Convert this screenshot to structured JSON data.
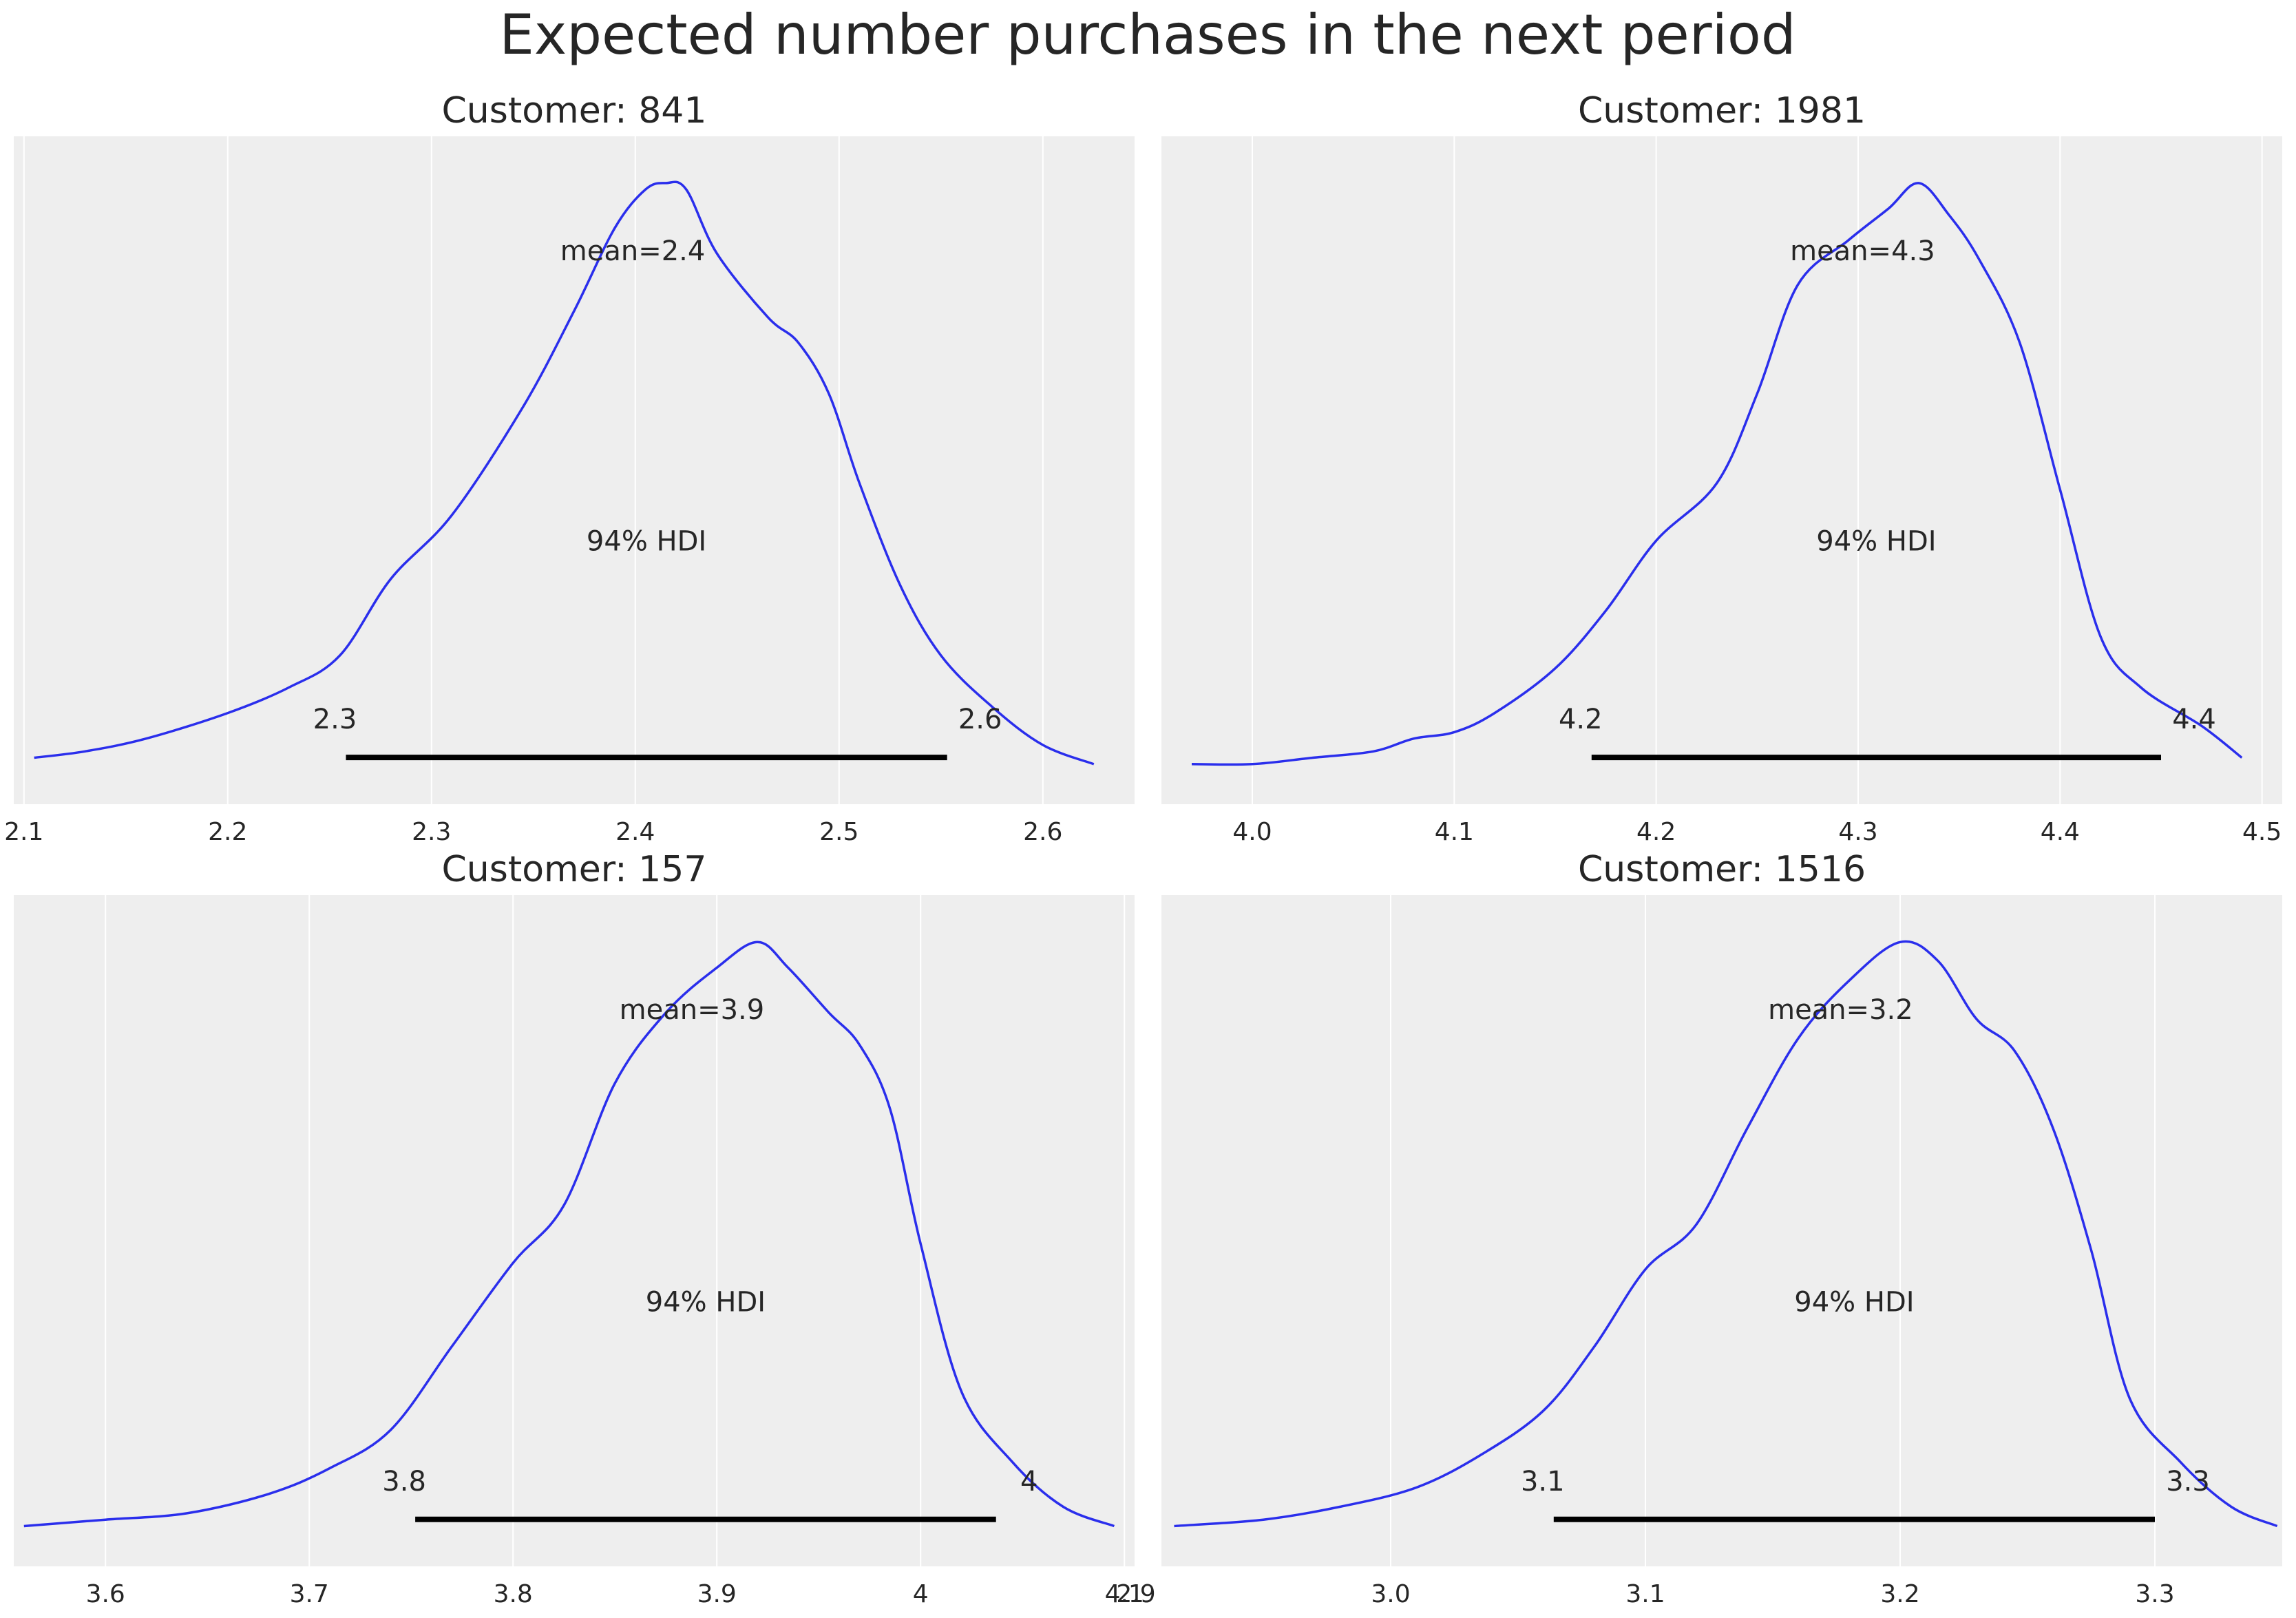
{
  "title": "Expected number purchases in the next period",
  "colors": {
    "panel_bg": "#eeeeee",
    "grid": "#ffffff",
    "curve": "#2a2eec",
    "hdi": "#000000",
    "text": "#262626"
  },
  "chart_data": [
    {
      "type": "line",
      "title": "Customer: 841",
      "xlim": [
        2.095,
        2.645
      ],
      "xticks": [
        2.1,
        2.2,
        2.3,
        2.4,
        2.5,
        2.6
      ],
      "xtick_labels": [
        "2.1",
        "2.2",
        "2.3",
        "2.4",
        "2.5",
        "2.6"
      ],
      "mean_label": "mean=2.4",
      "hdi_label": "94% HDI",
      "hdi": [
        2.258,
        2.553
      ],
      "hdi_labels": [
        "2.3",
        "2.6"
      ],
      "density": {
        "x": [
          2.105,
          2.13,
          2.16,
          2.2,
          2.23,
          2.255,
          2.28,
          2.31,
          2.345,
          2.37,
          2.39,
          2.405,
          2.415,
          2.425,
          2.44,
          2.465,
          2.48,
          2.495,
          2.51,
          2.53,
          2.55,
          2.575,
          2.6,
          2.625
        ],
        "y": [
          0.01,
          0.02,
          0.04,
          0.08,
          0.12,
          0.17,
          0.29,
          0.39,
          0.56,
          0.71,
          0.84,
          0.9,
          0.91,
          0.9,
          0.8,
          0.7,
          0.66,
          0.58,
          0.44,
          0.28,
          0.17,
          0.09,
          0.03,
          0.0
        ]
      }
    },
    {
      "type": "line",
      "title": "Customer: 1981",
      "xlim": [
        3.955,
        4.51
      ],
      "xticks": [
        4.0,
        4.1,
        4.2,
        4.3,
        4.4,
        4.5
      ],
      "xtick_labels": [
        "4.0",
        "4.1",
        "4.2",
        "4.3",
        "4.4",
        "4.5"
      ],
      "mean_label": "mean=4.3",
      "hdi_label": "94% HDI",
      "hdi": [
        4.168,
        4.45
      ],
      "hdi_labels": [
        "4.2",
        "4.4"
      ],
      "density": {
        "x": [
          3.97,
          4.0,
          4.03,
          4.06,
          4.08,
          4.1,
          4.12,
          4.15,
          4.175,
          4.2,
          4.23,
          4.25,
          4.27,
          4.295,
          4.315,
          4.33,
          4.345,
          4.36,
          4.38,
          4.4,
          4.42,
          4.44,
          4.47,
          4.49
        ],
        "y": [
          0.0,
          0.0,
          0.01,
          0.02,
          0.04,
          0.05,
          0.08,
          0.15,
          0.24,
          0.35,
          0.44,
          0.58,
          0.75,
          0.82,
          0.87,
          0.91,
          0.86,
          0.79,
          0.66,
          0.43,
          0.2,
          0.12,
          0.06,
          0.01
        ]
      }
    },
    {
      "type": "line",
      "title": "Customer: 157",
      "xlim": [
        3.555,
        4.105
      ],
      "xticks": [
        3.6,
        3.7,
        3.8,
        3.9,
        4.0,
        4.1
      ],
      "xtick_labels": [
        "3.6",
        "3.7",
        "3.8",
        "3.9",
        "4",
        "4.1"
      ],
      "mean_label": "mean=3.9",
      "hdi_label": "94% HDI",
      "hdi": [
        3.752,
        4.037
      ],
      "hdi_labels": [
        "3.8",
        "4"
      ],
      "density": {
        "x": [
          3.56,
          3.6,
          3.64,
          3.68,
          3.71,
          3.74,
          3.77,
          3.8,
          3.825,
          3.85,
          3.875,
          3.9,
          3.92,
          3.935,
          3.955,
          3.97,
          3.985,
          4.0,
          4.02,
          4.045,
          4.07,
          4.095
        ],
        "y": [
          0.0,
          0.01,
          0.02,
          0.05,
          0.09,
          0.15,
          0.28,
          0.41,
          0.5,
          0.69,
          0.8,
          0.87,
          0.91,
          0.87,
          0.8,
          0.75,
          0.65,
          0.44,
          0.21,
          0.1,
          0.03,
          0.0
        ]
      }
    },
    {
      "type": "line",
      "title": "Customer: 1516",
      "xlim": [
        2.91,
        3.35
      ],
      "xticks": [
        2.9,
        3.0,
        3.1,
        3.2,
        3.3
      ],
      "xtick_labels": [
        "2.9",
        "3.0",
        "3.1",
        "3.2",
        "3.3"
      ],
      "mean_label": "mean=3.2",
      "hdi_label": "94% HDI",
      "hdi": [
        3.064,
        3.3
      ],
      "hdi_labels": [
        "3.1",
        "3.3"
      ],
      "density": {
        "x": [
          2.915,
          2.95,
          2.98,
          3.01,
          3.035,
          3.06,
          3.08,
          3.1,
          3.12,
          3.14,
          3.16,
          3.18,
          3.2,
          3.215,
          3.23,
          3.245,
          3.26,
          3.275,
          3.29,
          3.31,
          3.33,
          3.348
        ],
        "y": [
          0.0,
          0.01,
          0.03,
          0.06,
          0.11,
          0.18,
          0.28,
          0.4,
          0.47,
          0.62,
          0.76,
          0.85,
          0.91,
          0.88,
          0.79,
          0.74,
          0.62,
          0.43,
          0.2,
          0.1,
          0.03,
          0.0
        ]
      }
    }
  ]
}
